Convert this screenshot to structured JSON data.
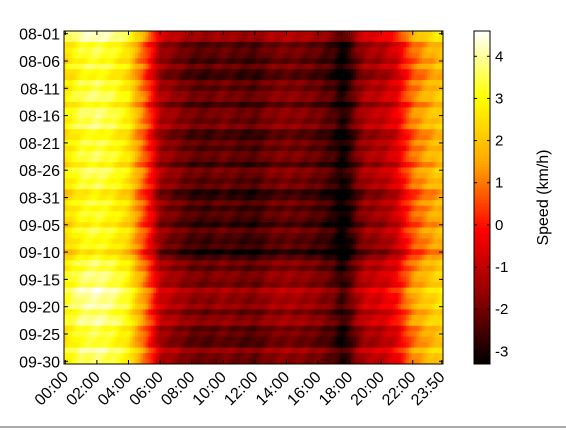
{
  "chart_data": {
    "type": "heatmap",
    "title": "",
    "xlabel": "",
    "ylabel": "",
    "colorbar_label": "Speed (km/h)",
    "colormap": "hot",
    "colormap_stops": [
      "#000000",
      "#8b0000",
      "#ff0000",
      "#ffa500",
      "#ffff00",
      "#ffffff"
    ],
    "clim": [
      -3.3,
      4.6
    ],
    "colorbar_ticks": [
      "-3",
      "-2",
      "-1",
      "0",
      "1",
      "2",
      "3",
      "4"
    ],
    "colorbar_tick_values": [
      -3,
      -2,
      -1,
      0,
      1,
      2,
      3,
      4
    ],
    "x_tick_labels": [
      "00:00",
      "02:00",
      "04:00",
      "06:00",
      "08:00",
      "10:00",
      "12:00",
      "14:00",
      "16:00",
      "18:00",
      "20:00",
      "22:00",
      "23:50"
    ],
    "y_tick_labels": [
      "08-01",
      "08-06",
      "08-11",
      "08-16",
      "08-21",
      "08-26",
      "08-31",
      "09-05",
      "09-10",
      "09-15",
      "09-20",
      "09-25",
      "09-30"
    ],
    "time_profile": {
      "hours": [
        0,
        1,
        2,
        3,
        4,
        4.5,
        5,
        5.5,
        6,
        7,
        8,
        9,
        10,
        11,
        12,
        13,
        14,
        15,
        16,
        17,
        17.5,
        18,
        18.5,
        19,
        20,
        21,
        21.5,
        22,
        23,
        23.83
      ],
      "values": [
        2.6,
        3.3,
        3.5,
        3.2,
        2.6,
        1.6,
        0.8,
        -0.2,
        -1.4,
        -1.8,
        -2.2,
        -2.3,
        -2.1,
        -2.3,
        -2.4,
        -2.0,
        -1.9,
        -2.0,
        -2.2,
        -2.6,
        -3.2,
        -2.7,
        -1.9,
        -1.4,
        -1.2,
        -0.6,
        0.2,
        0.9,
        1.6,
        2.0
      ]
    },
    "day_offsets": {
      "days": [
        "08-01",
        "08-06",
        "08-11",
        "08-16",
        "08-21",
        "08-26",
        "08-31",
        "09-05",
        "09-10",
        "09-15",
        "09-20",
        "09-25",
        "09-30"
      ],
      "values": [
        0.6,
        -0.3,
        0.0,
        0.2,
        -0.2,
        0.1,
        -0.4,
        -0.2,
        -0.5,
        0.5,
        0.6,
        0.0,
        0.3
      ]
    },
    "grid": false
  }
}
